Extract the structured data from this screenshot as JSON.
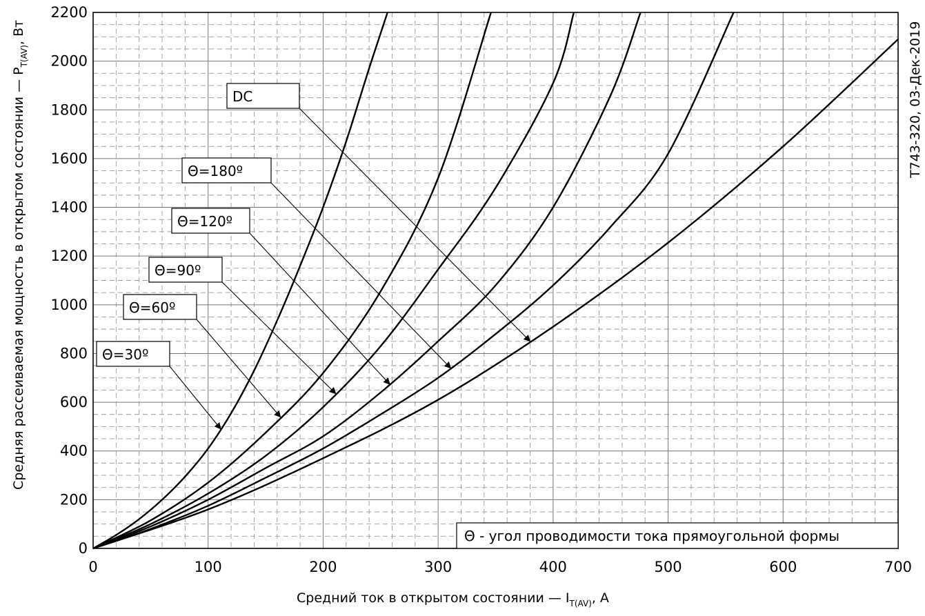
{
  "chart_data": {
    "type": "line",
    "xlabel": "Средний ток в открытом состоянии — I",
    "xlabel_sub": "T(AV)",
    "xlabel_unit": ", А",
    "ylabel": "Средняя рассеиваемая мощность в открытом состоянии — P",
    "ylabel_sub": "T(AV)",
    "ylabel_unit": ", Вт",
    "side_note": "Т743-320, 03-Дек-2019",
    "legend_note": "Θ - угол проводимости тока прямоугольной формы",
    "xlim": [
      0,
      700
    ],
    "ylim": [
      0,
      2200
    ],
    "xticks": [
      0,
      100,
      200,
      300,
      400,
      500,
      600,
      700
    ],
    "yticks": [
      0,
      200,
      400,
      600,
      800,
      1000,
      1200,
      1400,
      1600,
      1800,
      2000,
      2200
    ],
    "grid": true,
    "series": [
      {
        "name": "Θ=30º",
        "x": [
          0,
          20,
          40,
          60,
          80,
          100,
          120,
          140,
          160,
          180,
          200,
          220,
          240,
          256
        ],
        "y": [
          0,
          55,
          120,
          200,
          295,
          410,
          555,
          730,
          935,
          1160,
          1400,
          1670,
          1970,
          2200
        ]
      },
      {
        "name": "Θ=60º",
        "x": [
          0,
          50,
          100,
          150,
          200,
          250,
          300,
          346
        ],
        "y": [
          0,
          115,
          270,
          475,
          720,
          1055,
          1520,
          2200
        ]
      },
      {
        "name": "Θ=90º",
        "x": [
          0,
          50,
          100,
          150,
          200,
          250,
          300,
          350,
          400,
          418
        ],
        "y": [
          0,
          100,
          225,
          380,
          580,
          830,
          1145,
          1480,
          1910,
          2200
        ]
      },
      {
        "name": "Θ=120º",
        "x": [
          0,
          50,
          100,
          150,
          200,
          250,
          300,
          350,
          400,
          450,
          476
        ],
        "y": [
          0,
          90,
          200,
          330,
          460,
          640,
          850,
          1080,
          1400,
          1860,
          2200
        ]
      },
      {
        "name": "Θ=180º",
        "x": [
          0,
          50,
          100,
          150,
          200,
          250,
          300,
          350,
          400,
          450,
          500,
          557
        ],
        "y": [
          0,
          80,
          175,
          290,
          410,
          550,
          700,
          880,
          1080,
          1320,
          1620,
          2200
        ]
      },
      {
        "name": "DC",
        "x": [
          0,
          100,
          200,
          300,
          400,
          500,
          600,
          700
        ],
        "y": [
          0,
          160,
          370,
          610,
          910,
          1255,
          1650,
          2090
        ]
      }
    ],
    "labels": [
      {
        "text": "DC",
        "series": "DC"
      },
      {
        "text": "Θ=180º",
        "series": "Θ=180º"
      },
      {
        "text": "Θ=120º",
        "series": "Θ=120º"
      },
      {
        "text": "Θ=90º",
        "series": "Θ=90º"
      },
      {
        "text": "Θ=60º",
        "series": "Θ=60º"
      },
      {
        "text": "Θ=30º",
        "series": "Θ=30º"
      }
    ]
  }
}
